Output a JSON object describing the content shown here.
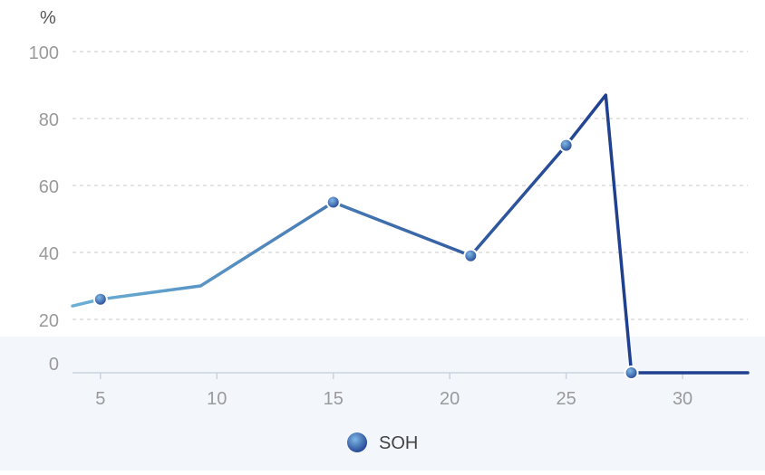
{
  "chart_data": {
    "type": "line",
    "title": "",
    "xlabel": "",
    "ylabel": "%",
    "y_ticks": [
      0,
      20,
      40,
      60,
      80,
      100
    ],
    "x_ticks": [
      5,
      10,
      15,
      20,
      25,
      30
    ],
    "ylim": [
      0,
      100
    ],
    "xlim": [
      3.8,
      32.8
    ],
    "grid": true,
    "legend": "bottom-center",
    "series": [
      {
        "name": "SOH",
        "color_start": "#6cb0d6",
        "color_end": "#1f3f8f",
        "x": [
          3.8,
          5,
          9.3,
          15,
          20.9,
          25,
          26.7,
          27.8,
          32.8
        ],
        "y": [
          24,
          26,
          30,
          55,
          39,
          72,
          87,
          0,
          0
        ],
        "markers": [
          1,
          3,
          4,
          5,
          7
        ]
      }
    ]
  }
}
